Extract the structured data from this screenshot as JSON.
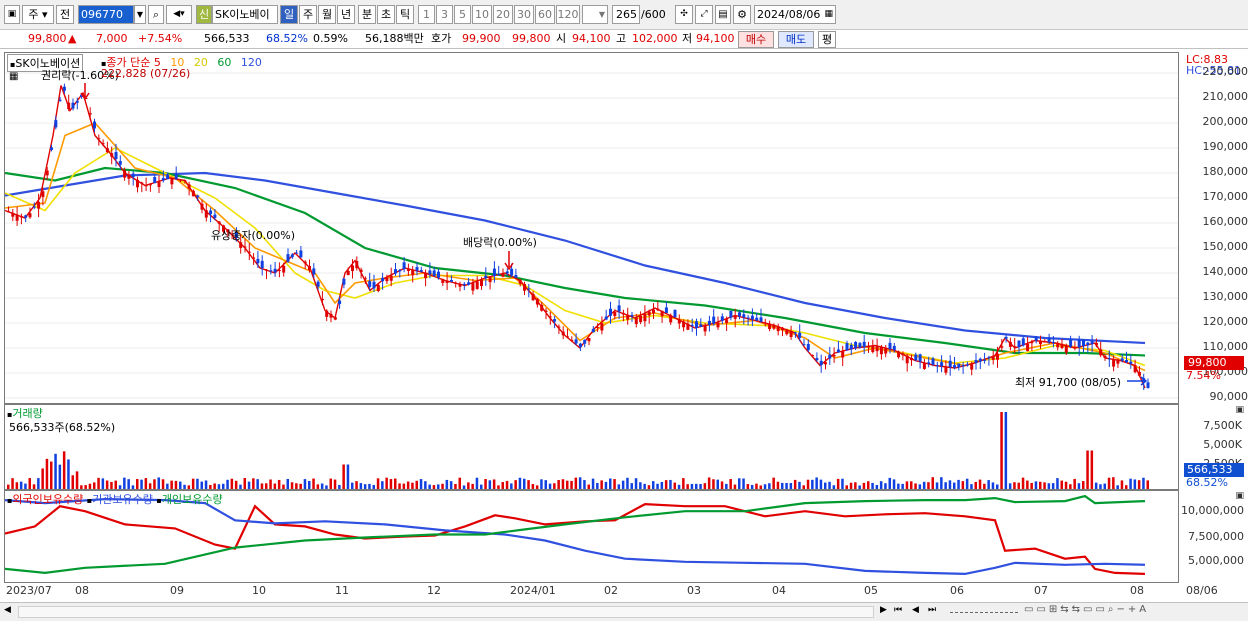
{
  "toolbar": {
    "period_ju": "주",
    "prev_label": "전",
    "code": "096770",
    "shin_label": "신",
    "stock_name": "SK이노베이",
    "periods": [
      "일",
      "주",
      "월",
      "년",
      "분",
      "초",
      "틱"
    ],
    "active_period": "일",
    "counts": [
      "1",
      "3",
      "5",
      "10",
      "20",
      "30",
      "60",
      "120"
    ],
    "count_value": "265",
    "count_total": "/600",
    "date": "2024/08/06"
  },
  "info": {
    "price": "99,800",
    "arrow": "▲",
    "change": "7,000",
    "change_pct": "+7.54%",
    "volume": "566,533",
    "vol_ratio": "68.52%",
    "turnover": "0.59%",
    "amount": "56,188백만",
    "hoga_label": "호가",
    "hoga1": "99,900",
    "hoga2": "99,800",
    "open_label": "시",
    "open": "94,100",
    "high_label": "고",
    "high": "102,000",
    "low_label": "저",
    "low": "94,100",
    "buy_label": "매수",
    "sell_label": "매도",
    "pyeong_label": "평"
  },
  "price_pane": {
    "stock_label": "SK이노베이션",
    "ma_title": "종가 단순",
    "ma_periods": [
      "5",
      "10",
      "20",
      "60",
      "120"
    ],
    "ma_colors": [
      "#e00000",
      "#ff9a00",
      "#f0e000",
      "#009a30",
      "#3050e0"
    ],
    "lc": "LC:8.83",
    "hc": "HC:-55.81",
    "y_ticks": [
      "220,000",
      "210,000",
      "200,000",
      "190,000",
      "180,000",
      "170,000",
      "160,000",
      "150,000",
      "140,000",
      "130,000",
      "120,000",
      "110,000",
      "100,000",
      "90,000"
    ],
    "current_price": "99,800",
    "current_pct": "7.54%",
    "annotations": {
      "rights": "권리락(-1.60%)",
      "high": "222,828 (07/26)",
      "capital": "유상증자(0.00%)",
      "dividend": "배당락(0.00%)",
      "low": "최저 91,700 (08/05)"
    }
  },
  "volume_pane": {
    "title": "거래량",
    "value": "566,533주(68.52%)",
    "y_ticks": [
      "7,500K",
      "5,000K",
      "2,500K"
    ],
    "current_value": "566,533",
    "current_pct": "68.52%"
  },
  "holding_pane": {
    "legend": [
      "외국인보유수량",
      "기관보유수량",
      "개인보유수량"
    ],
    "legend_colors": [
      "#e00000",
      "#3050e0",
      "#009a30"
    ],
    "y_ticks": [
      "10,000,000",
      "7,500,000",
      "5,000,000"
    ]
  },
  "x_axis": {
    "labels": [
      "2023/07",
      "08",
      "09",
      "10",
      "11",
      "12",
      "2024/01",
      "02",
      "03",
      "04",
      "05",
      "06",
      "07",
      "08"
    ],
    "end_label": "08/06"
  },
  "chart_data": {
    "type": "line",
    "title": "SK이노베이션",
    "x": [
      "2023/07",
      "08",
      "09",
      "10",
      "11",
      "12",
      "2024/01",
      "02",
      "03",
      "04",
      "05",
      "06",
      "07",
      "08"
    ],
    "series": [
      {
        "name": "종가",
        "values": [
          165000,
          205000,
          180000,
          150000,
          130000,
          140000,
          138000,
          125000,
          122000,
          118000,
          108000,
          103000,
          108000,
          99800
        ]
      },
      {
        "name": "120",
        "values": [
          173000,
          178000,
          180000,
          177000,
          170000,
          163000,
          158000,
          147000,
          137000,
          128000,
          121000,
          116000,
          114000,
          112000
        ]
      },
      {
        "name": "60",
        "values": [
          180000,
          182000,
          178000,
          165000,
          148000,
          142000,
          140000,
          132000,
          128000,
          122000,
          114000,
          110000,
          110000,
          108000
        ]
      }
    ],
    "ylim": [
      88000,
      228000
    ]
  }
}
